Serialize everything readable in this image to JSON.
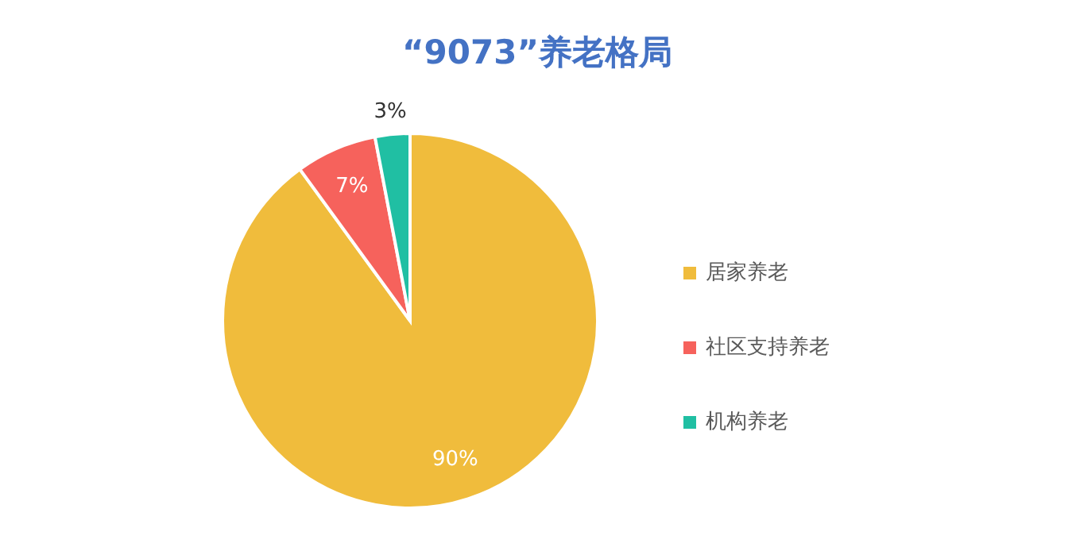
{
  "chart_data": {
    "type": "pie",
    "title": "“9073”养老格局",
    "categories": [
      "居家养老",
      "社区支持养老",
      "机构养老"
    ],
    "values": [
      90,
      7,
      3
    ],
    "colors": [
      "#f0bc3c",
      "#f6625c",
      "#20bfa3"
    ],
    "value_labels": [
      "90%",
      "7%",
      "3%"
    ],
    "legend": "right"
  }
}
